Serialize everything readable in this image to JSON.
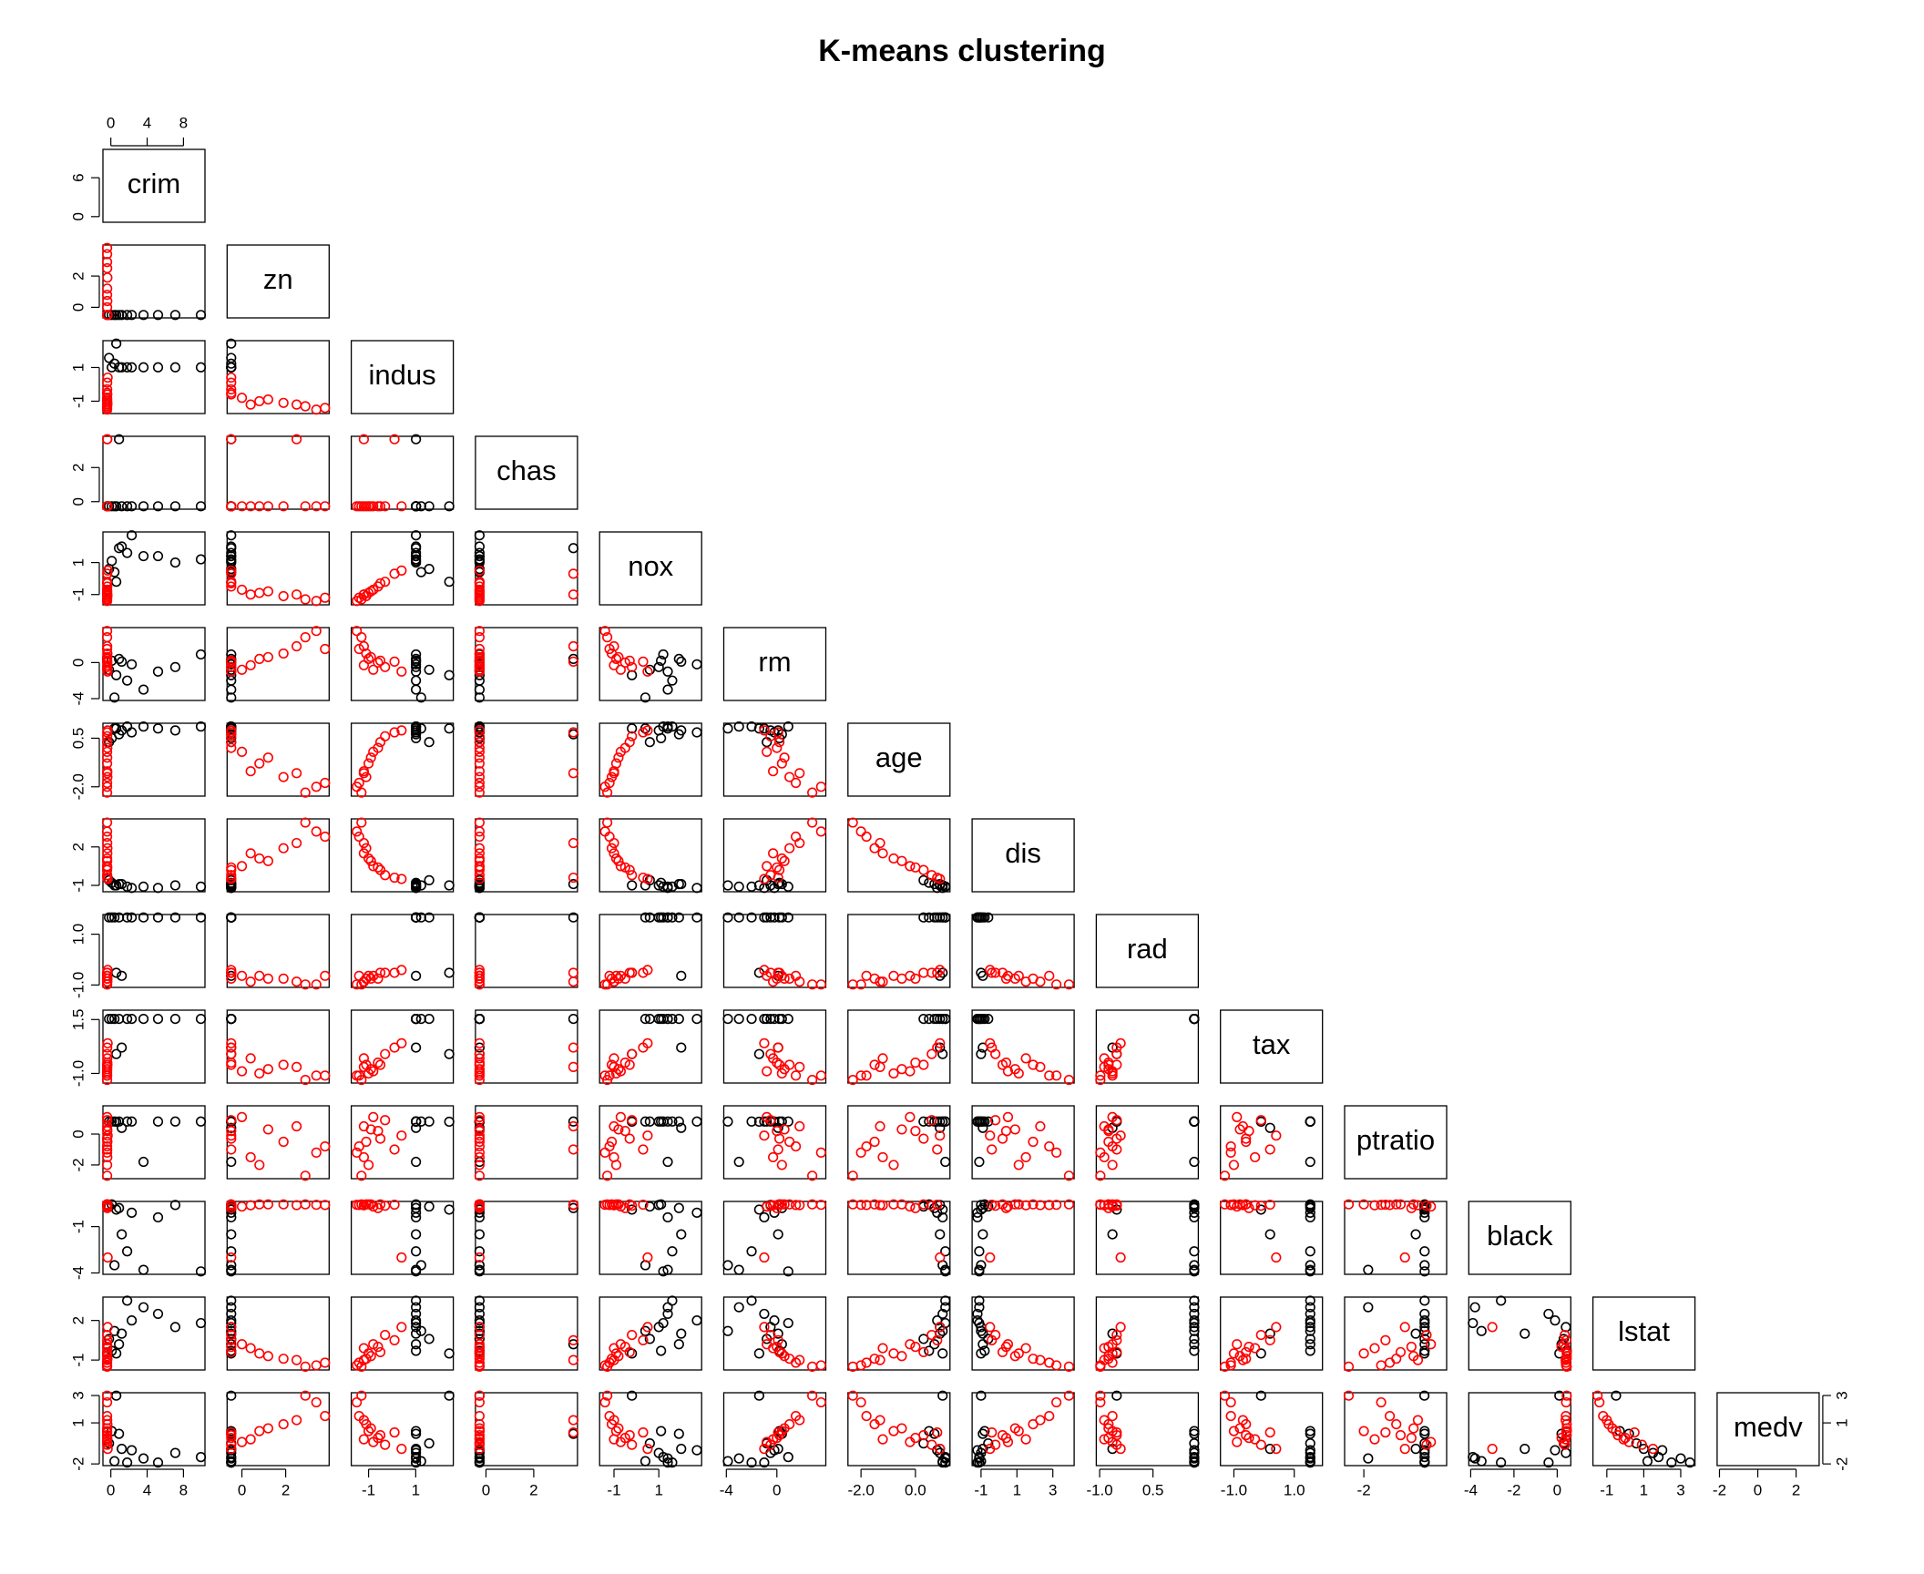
{
  "chart_data": {
    "type": "scatter-matrix",
    "title": "K-means clustering",
    "variables": [
      {
        "name": "crim",
        "lim": [
          -0.42,
          9.92
        ],
        "xticks": [
          0,
          4,
          8
        ],
        "yticks": [
          0,
          6
        ]
      },
      {
        "name": "zn",
        "lim": [
          -0.49,
          3.8
        ],
        "xticks": [
          0,
          2
        ],
        "yticks": [
          0,
          2
        ]
      },
      {
        "name": "indus",
        "lim": [
          -1.56,
          2.42
        ],
        "xticks": [
          -1,
          1
        ],
        "yticks": [
          -1,
          1
        ]
      },
      {
        "name": "chas",
        "lim": [
          -0.27,
          3.66
        ],
        "xticks": [
          0,
          2
        ],
        "yticks": [
          0,
          2
        ]
      },
      {
        "name": "nox",
        "lim": [
          -1.46,
          2.73
        ],
        "xticks": [
          -1,
          1
        ],
        "yticks": [
          -1,
          1
        ]
      },
      {
        "name": "rm",
        "lim": [
          -3.88,
          3.55
        ],
        "xticks": [
          -4,
          0
        ],
        "yticks": [
          -4,
          0
        ]
      },
      {
        "name": "age",
        "lim": [
          -2.33,
          1.12
        ],
        "xticks": [
          {
            "value": -2,
            "label": "-2.0"
          },
          {
            "value": 0,
            "label": "0.0"
          }
        ],
        "yticks": [
          {
            "value": -2,
            "label": "-2.0"
          },
          0.5
        ]
      },
      {
        "name": "dis",
        "lim": [
          -1.27,
          3.96
        ],
        "xticks": [
          -1,
          1,
          3
        ],
        "yticks": [
          -1,
          2
        ]
      },
      {
        "name": "rad",
        "lim": [
          -0.98,
          1.66
        ],
        "xticks": [
          {
            "value": -1,
            "label": "-1.0"
          },
          0.5
        ],
        "yticks": [
          {
            "value": -1,
            "label": "-1.0"
          },
          {
            "value": 1,
            "label": "1.0"
          }
        ]
      },
      {
        "name": "tax",
        "lim": [
          -1.31,
          1.8
        ],
        "xticks": [
          {
            "value": -1,
            "label": "-1.0"
          },
          {
            "value": 1,
            "label": "1.0"
          }
        ],
        "yticks": [
          {
            "value": -1,
            "label": "-1.0"
          },
          1.5
        ]
      },
      {
        "name": "ptratio",
        "lim": [
          -2.7,
          1.64
        ],
        "xticks": [
          -2
        ],
        "yticks": [
          -2,
          0
        ]
      },
      {
        "name": "black",
        "lim": [
          -3.9,
          0.44
        ],
        "xticks": [
          -4,
          -2,
          0
        ],
        "yticks": [
          -4,
          -1
        ]
      },
      {
        "name": "lstat",
        "lim": [
          -1.53,
          3.55
        ],
        "xticks": [
          -1,
          1,
          3
        ],
        "yticks": [
          -1,
          2
        ]
      },
      {
        "name": "medv",
        "lim": [
          -1.91,
          2.99
        ],
        "xticks": [
          -2,
          0,
          2
        ],
        "yticks": [
          -2,
          1,
          3
        ]
      }
    ],
    "series": [
      {
        "color": "#000000",
        "values": [
          [
            9.92,
            5.2,
            7.1,
            1.8,
            0.9,
            0.4,
            2.3,
            0.1,
            -0.2,
            3.6,
            0.6,
            1.2
          ],
          [
            -0.49,
            -0.49,
            -0.49,
            -0.49,
            -0.49,
            -0.49,
            -0.49,
            -0.49,
            -0.49,
            -0.49,
            -0.49,
            -0.49
          ],
          [
            1.01,
            1.01,
            1.01,
            1.01,
            1.01,
            1.23,
            1.01,
            1.01,
            1.57,
            1.01,
            2.42,
            1.01
          ],
          [
            -0.27,
            -0.27,
            -0.27,
            -0.27,
            3.66,
            -0.27,
            -0.27,
            -0.27,
            -0.27,
            -0.27,
            -0.27,
            -0.27
          ],
          [
            1.2,
            1.4,
            1.0,
            1.6,
            1.9,
            0.4,
            2.7,
            1.1,
            0.6,
            1.4,
            -0.2,
            2.0
          ],
          [
            0.9,
            -1.0,
            -0.5,
            -2.0,
            0.4,
            -3.88,
            -0.2,
            0.2,
            -0.8,
            -3.0,
            -1.4,
            0.1
          ],
          [
            1.1,
            1.0,
            0.9,
            1.1,
            0.7,
            1.0,
            0.8,
            0.5,
            0.3,
            1.1,
            1.0,
            0.9
          ],
          [
            -1.1,
            -1.2,
            -1.0,
            -1.1,
            -0.9,
            -1.0,
            -1.2,
            -0.8,
            -0.6,
            -1.1,
            -1.0,
            -0.9
          ],
          [
            1.66,
            1.66,
            1.66,
            1.66,
            1.66,
            1.66,
            1.66,
            1.66,
            1.66,
            1.66,
            -0.52,
            -0.64
          ],
          [
            1.53,
            1.53,
            1.53,
            1.53,
            1.53,
            1.53,
            1.53,
            1.53,
            1.53,
            1.53,
            -0.1,
            0.2
          ],
          [
            0.81,
            0.81,
            0.81,
            0.81,
            0.81,
            0.81,
            0.81,
            0.81,
            0.81,
            -1.8,
            0.8,
            0.4
          ],
          [
            -3.9,
            -0.4,
            0.4,
            -2.6,
            0.2,
            -3.5,
            -0.1,
            0.44,
            0.3,
            -3.8,
            0.1,
            -1.5
          ],
          [
            1.8,
            2.5,
            1.5,
            3.5,
            0.2,
            1.2,
            2.0,
            -0.3,
            0.6,
            3.0,
            -0.5,
            1.0
          ],
          [
            -1.5,
            -1.9,
            -1.2,
            -1.9,
            0.2,
            -1.8,
            -1.0,
            0.4,
            -0.5,
            -1.6,
            2.99,
            -0.9
          ]
        ]
      },
      {
        "color": "#ff0000",
        "values": [
          [
            -0.41,
            -0.41,
            -0.4,
            -0.39,
            -0.41,
            -0.4,
            -0.41,
            -0.38,
            -0.41,
            -0.4,
            -0.35,
            -0.41,
            -0.4,
            -0.39
          ],
          [
            -0.49,
            3.8,
            1.2,
            0.4,
            2.9,
            -0.49,
            0.0,
            1.9,
            3.4,
            -0.49,
            -0.49,
            0.8,
            2.5,
            -0.49
          ],
          [
            -0.5,
            -1.4,
            -0.9,
            -1.2,
            -1.3,
            0.1,
            -0.8,
            -1.1,
            -1.5,
            -0.3,
            0.4,
            -1.0,
            -1.2,
            -0.6
          ],
          [
            -0.27,
            -0.27,
            -0.27,
            -0.27,
            -0.27,
            3.66,
            -0.27,
            -0.27,
            -0.27,
            -0.27,
            -0.27,
            -0.27,
            3.66,
            -0.27
          ],
          [
            -0.3,
            -1.2,
            -0.8,
            -1.0,
            -1.3,
            0.3,
            -0.7,
            -1.1,
            -1.4,
            -0.2,
            0.5,
            -0.9,
            -1.0,
            -0.5
          ],
          [
            0.2,
            1.5,
            0.6,
            -0.3,
            2.8,
            0.1,
            -0.8,
            1.0,
            3.5,
            -0.5,
            -1.0,
            0.4,
            1.8,
            0.0
          ],
          [
            0.3,
            -1.8,
            -0.5,
            -1.2,
            -2.3,
            0.8,
            -0.2,
            -1.5,
            -2.0,
            0.6,
            0.9,
            -0.8,
            -1.3,
            0.0
          ],
          [
            0.2,
            2.8,
            0.9,
            1.5,
            3.9,
            -0.4,
            0.5,
            1.9,
            3.2,
            -0.2,
            -0.5,
            1.1,
            2.3,
            0.4
          ],
          [
            -0.52,
            -0.64,
            -0.75,
            -0.87,
            -0.98,
            -0.52,
            -0.64,
            -0.75,
            -0.98,
            -0.52,
            -0.41,
            -0.64,
            -0.87,
            -0.75
          ],
          [
            -0.6,
            -1.1,
            -0.8,
            -0.3,
            -1.3,
            0.2,
            -0.9,
            -0.6,
            -1.1,
            -0.1,
            0.4,
            -1.0,
            -0.7,
            -0.5
          ],
          [
            -0.3,
            -0.8,
            0.3,
            -1.5,
            -2.7,
            -1.0,
            1.1,
            -0.5,
            -1.2,
            0.9,
            -0.1,
            -2.0,
            0.5,
            0.2
          ],
          [
            0.44,
            0.4,
            0.44,
            0.38,
            0.44,
            0.42,
            0.3,
            0.44,
            0.41,
            0.35,
            -3.0,
            0.44,
            0.39,
            0.2
          ],
          [
            -0.4,
            -1.2,
            -0.7,
            -0.1,
            -1.5,
            0.5,
            0.2,
            -0.9,
            -1.4,
            0.9,
            1.5,
            -0.5,
            -1.0,
            0.0
          ],
          [
            0.1,
            1.5,
            0.6,
            -0.2,
            2.99,
            0.3,
            -0.4,
            0.9,
            2.5,
            -0.6,
            -0.9,
            0.4,
            1.2,
            -0.1
          ]
        ]
      }
    ]
  }
}
